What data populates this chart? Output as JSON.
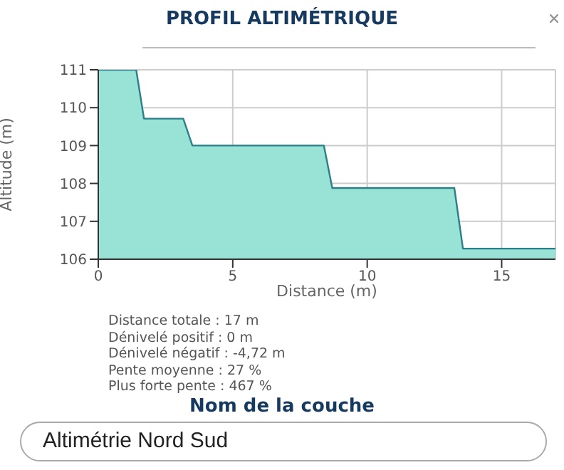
{
  "chart_data": {
    "type": "area",
    "title": "PROFIL ALTIMÉTRIQUE",
    "xlabel": "Distance (m)",
    "ylabel": "Altitude (m)",
    "x": [
      0,
      1.41,
      1.7,
      3.16,
      3.5,
      8.39,
      8.7,
      13.24,
      13.56,
      17
    ],
    "series": [
      {
        "color": "#99e3d6",
        "values": [
          111,
          111,
          109.71,
          109.71,
          109,
          109,
          107.88,
          107.88,
          106.28,
          106.28
        ]
      }
    ],
    "xlim": [
      0,
      17
    ],
    "xticks": [
      0,
      5,
      10,
      15
    ],
    "ylim": [
      106,
      111
    ],
    "yticks": [
      106,
      107,
      108,
      109,
      110,
      111
    ],
    "grid": true,
    "legend": false,
    "marker": "none",
    "line_style": "solid",
    "annotations": [
      "Distance totale : 17 m",
      "Dénivelé positif : 0 m",
      "Dénivelé négatif : -4,72 m",
      "Pente moyenne : 27 %",
      "Plus forte pente : 467 %",
      "Nom de la couche",
      "Altimétrie Nord Sud"
    ]
  }
}
